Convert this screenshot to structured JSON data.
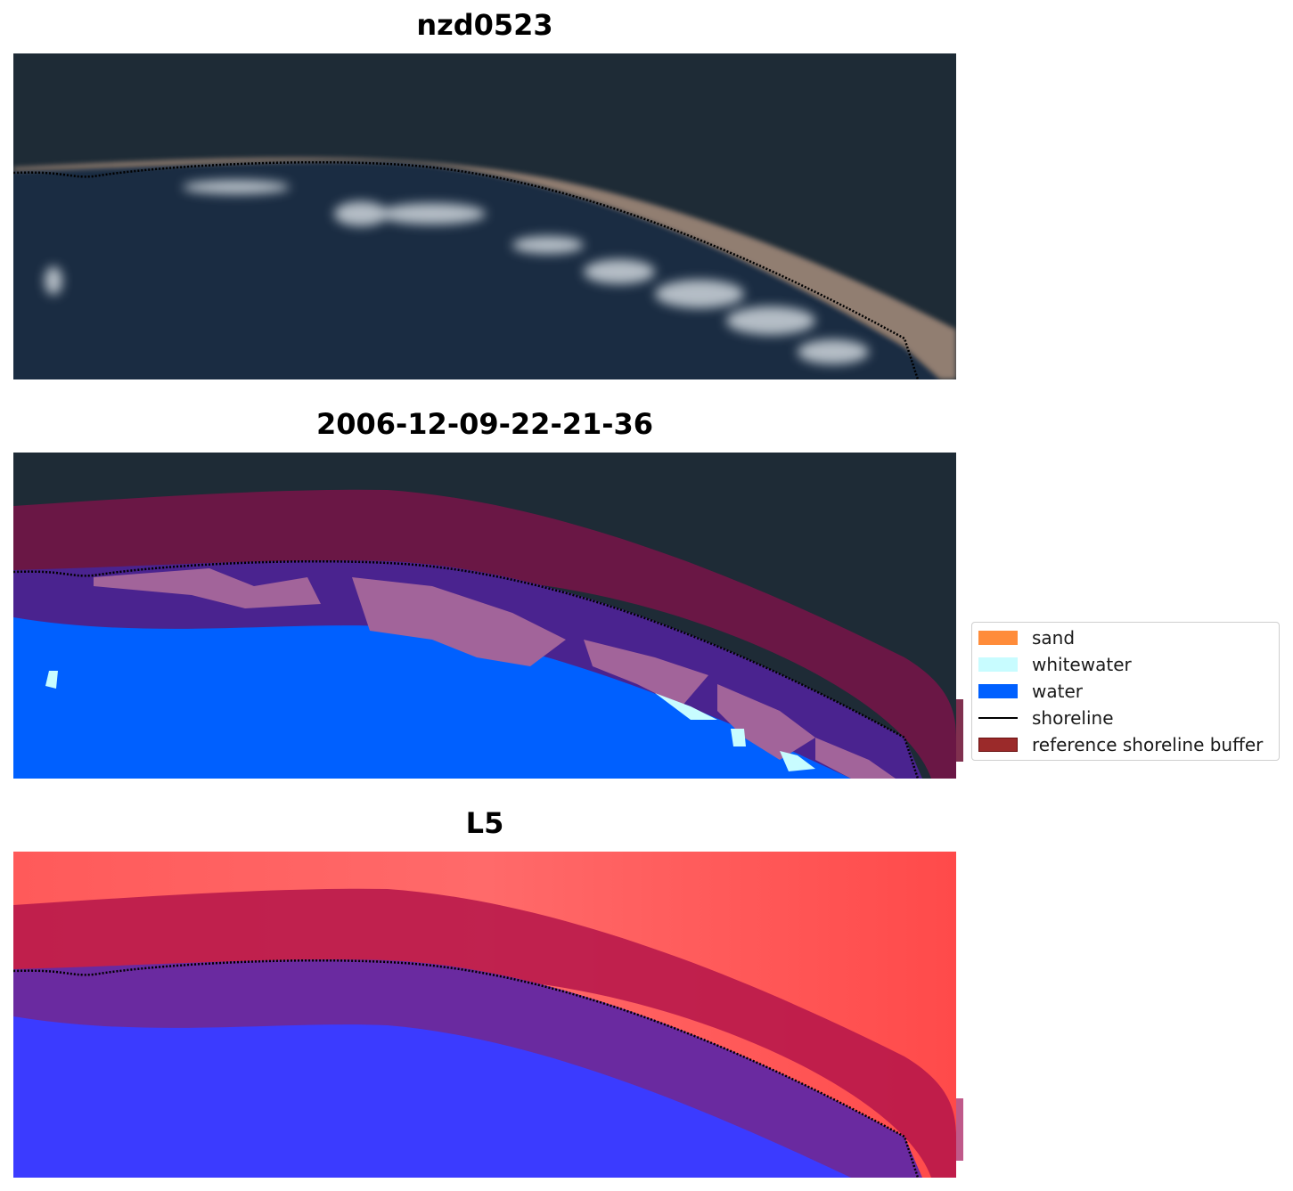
{
  "panels": [
    {
      "title": "nzd0523",
      "kind": "rgb"
    },
    {
      "title": "2006-12-09-22-21-36",
      "kind": "classified"
    },
    {
      "title": "L5",
      "kind": "mndwi"
    }
  ],
  "legend": {
    "items": [
      {
        "label": "sand",
        "color": "#ff8c3a",
        "type": "patch"
      },
      {
        "label": "whitewater",
        "color": "#c8fcff",
        "type": "patch"
      },
      {
        "label": "water",
        "color": "#0060ff",
        "type": "patch"
      },
      {
        "label": "shoreline",
        "color": "#000000",
        "type": "line"
      },
      {
        "label": "reference shoreline buffer",
        "color": "#9b2a2a",
        "type": "patch"
      }
    ]
  },
  "colors": {
    "land_dark": "#1e2b36",
    "sea_dark": "#1a2c42",
    "beach": "#b89a85",
    "buffer": "#6a1745",
    "buffer_water": "#4a238f",
    "sand_pink": "#a2649a",
    "water_blue": "#0060ff",
    "mndwi_land": "#ff5a5a",
    "mndwi_water": "#3b3bff"
  }
}
